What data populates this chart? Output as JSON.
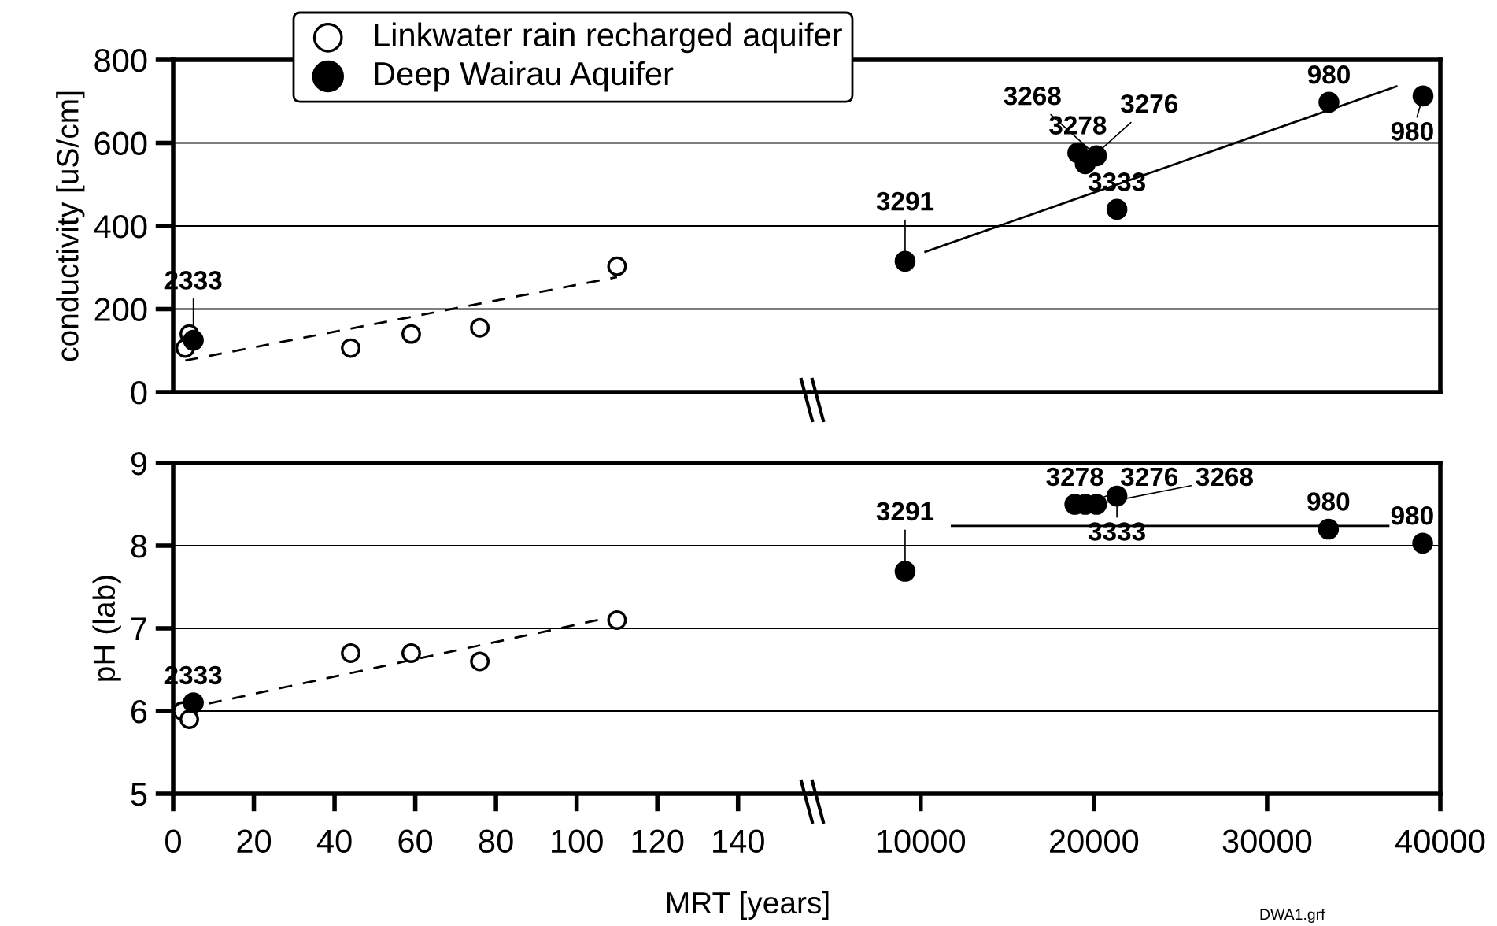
{
  "chart_data": [
    {
      "type": "scatter",
      "ylabel": "conductivity [uS/cm]",
      "xlim": [
        0,
        158
      ],
      "ylim": [
        0,
        800
      ],
      "yticks": [
        0,
        200,
        400,
        600,
        800
      ],
      "grid": "y",
      "legend": "top",
      "tick_labels": "y",
      "marker": "circle",
      "annotations": [
        {
          "text": "2333",
          "x": 5,
          "y": 125
        }
      ],
      "series": [
        {
          "name": "Linkwater rain recharged aquifer",
          "color": "#ffffff",
          "x": [
            3,
            4,
            44,
            59,
            76,
            110
          ],
          "values": [
            106,
            140,
            106,
            140,
            155,
            303
          ]
        },
        {
          "name": "Deep Wairau Aquifer",
          "color": "#000000",
          "x": [
            5
          ],
          "values": [
            125
          ]
        },
        {
          "type": "line",
          "color": "#000000",
          "line_style": "dashed",
          "marker": "none",
          "x": [
            3,
            110
          ],
          "values": [
            76,
            277
          ]
        }
      ]
    },
    {
      "type": "scatter",
      "xlim": [
        3650,
        40000
      ],
      "ylim": [
        0,
        800
      ],
      "yticks": [
        0,
        200,
        400,
        600,
        800
      ],
      "grid": "y",
      "tick_labels": false,
      "marker": "circle",
      "annotations": [
        {
          "text": "3291",
          "x": 9100,
          "y": 315
        },
        {
          "text": "3278",
          "x": 19070,
          "y": 576
        },
        {
          "text": "3276",
          "x": 19500,
          "y": 550
        },
        {
          "text": "3268",
          "x": 20150,
          "y": 569
        },
        {
          "text": "3333",
          "x": 21330,
          "y": 440
        },
        {
          "text": "980",
          "x": 33570,
          "y": 698
        },
        {
          "text": "980",
          "x": 39000,
          "y": 713
        }
      ],
      "series": [
        {
          "color": "#000000",
          "x": [
            9100,
            19070,
            19500,
            20150,
            21330,
            33570,
            39000
          ],
          "values": [
            315,
            576,
            550,
            569,
            440,
            698,
            713
          ]
        },
        {
          "type": "line",
          "color": "#000000",
          "line_style": "solid",
          "marker": "none",
          "x": [
            10270,
            37470
          ],
          "values": [
            338,
            736
          ]
        }
      ]
    },
    {
      "type": "scatter",
      "ylabel": "pH (lab)",
      "xlabel": "MRT [years]",
      "xlim": [
        0,
        158
      ],
      "xticks": [
        0,
        20,
        40,
        60,
        80,
        100,
        120,
        140
      ],
      "ylim": [
        5,
        9
      ],
      "yticks": [
        5,
        6,
        7,
        8,
        9
      ],
      "grid": "y",
      "marker": "circle",
      "annotations": [
        {
          "text": "2333",
          "x": 5,
          "y": 6.1
        }
      ],
      "series": [
        {
          "color": "#ffffff",
          "x": [
            2.3,
            4,
            44,
            59,
            76,
            110
          ],
          "values": [
            6.0,
            5.9,
            6.7,
            6.7,
            6.6,
            7.1
          ]
        },
        {
          "color": "#000000",
          "x": [
            5
          ],
          "values": [
            6.1
          ]
        },
        {
          "type": "line",
          "color": "#000000",
          "line_style": "dashed",
          "marker": "none",
          "x": [
            3,
            110
          ],
          "values": [
            6.03,
            7.15
          ]
        }
      ]
    },
    {
      "type": "scatter",
      "xlim": [
        3650,
        40000
      ],
      "xticks": [
        10000,
        20000,
        30000,
        40000
      ],
      "ylim": [
        5,
        9
      ],
      "yticks": [
        5,
        6,
        7,
        8,
        9
      ],
      "grid": "y",
      "tick_labels": "x",
      "marker": "circle",
      "annotations": [
        {
          "text": "3291",
          "x": 9100,
          "y": 7.69
        },
        {
          "text": "3278",
          "x": 18900,
          "y": 8.5
        },
        {
          "text": "3276",
          "x": 19500,
          "y": 8.5
        },
        {
          "text": "3268",
          "x": 20150,
          "y": 8.5
        },
        {
          "text": "3333",
          "x": 21330,
          "y": 8.6
        },
        {
          "text": "980",
          "x": 33540,
          "y": 8.2
        },
        {
          "text": "980",
          "x": 38980,
          "y": 8.03
        },
        "DWA1.grf"
      ],
      "series": [
        {
          "color": "#000000",
          "x": [
            9100,
            18900,
            19500,
            20150,
            21330,
            33540,
            38980
          ],
          "values": [
            7.69,
            8.5,
            8.5,
            8.5,
            8.6,
            8.2,
            8.03
          ]
        },
        {
          "type": "line",
          "color": "#000000",
          "line_style": "solid",
          "marker": "none",
          "x": [
            11800,
            37000
          ],
          "values": [
            8.24,
            8.24
          ]
        }
      ]
    }
  ]
}
